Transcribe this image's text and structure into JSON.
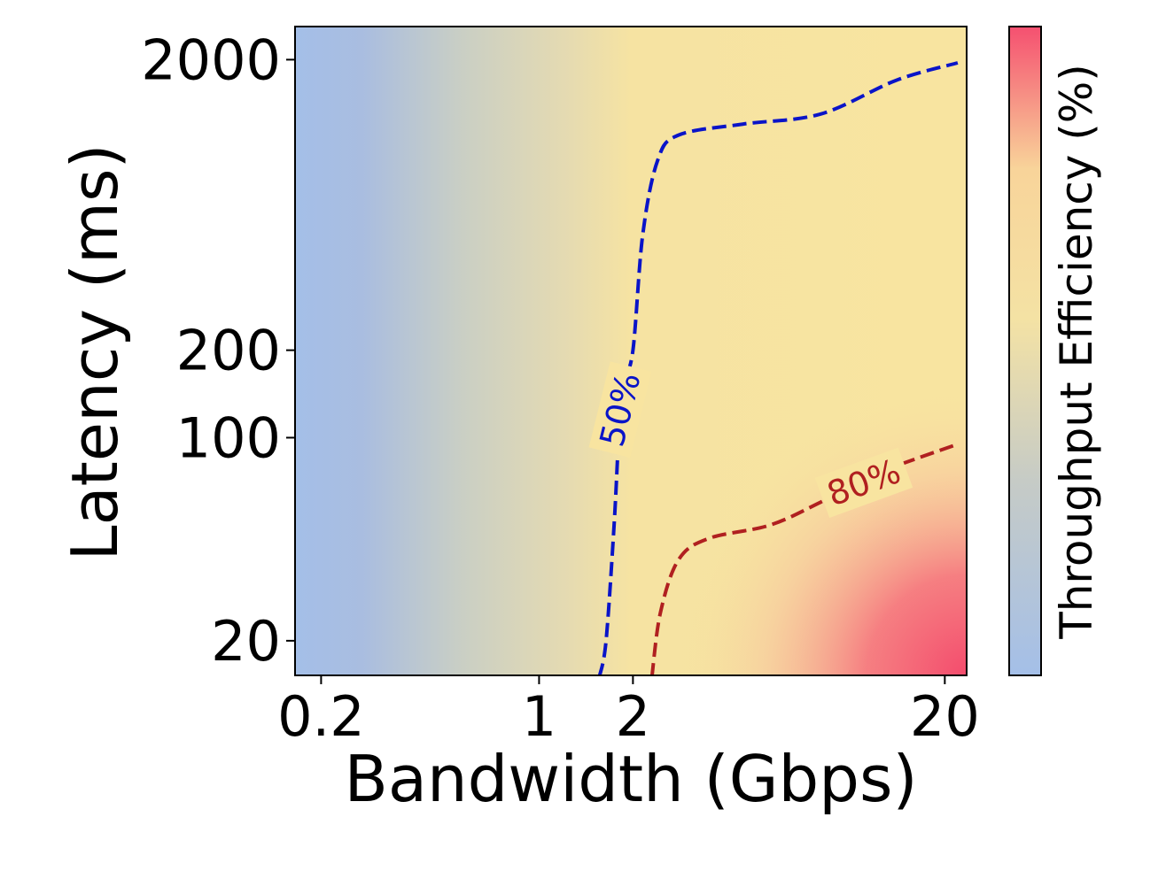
{
  "chart_data": {
    "type": "heatmap",
    "title": "",
    "xlabel": "Bandwidth (Gbps)",
    "ylabel": "Latency (ms)",
    "colorbar_label": "Throughput Efficiency (%)",
    "x_ticks": [
      {
        "value": 0.2,
        "label": "0.2"
      },
      {
        "value": 1,
        "label": "1"
      },
      {
        "value": 2,
        "label": "2"
      },
      {
        "value": 20,
        "label": "20"
      }
    ],
    "y_ticks": [
      {
        "value": 20,
        "label": "20"
      },
      {
        "value": 100,
        "label": "100"
      },
      {
        "value": 200,
        "label": "200"
      },
      {
        "value": 2000,
        "label": "2000"
      }
    ],
    "colormap": {
      "low": "#a4bfe8",
      "mid": "#f8e4a0",
      "high": "#f55070"
    },
    "contours": [
      {
        "label": "50%",
        "color": "#0a14c8",
        "points": [
          [
            1.56,
            15
          ],
          [
            1.64,
            20
          ],
          [
            1.74,
            50
          ],
          [
            1.8,
            100
          ],
          [
            1.86,
            150
          ],
          [
            2.0,
            200
          ],
          [
            2.15,
            500
          ],
          [
            2.4,
            900
          ],
          [
            2.8,
            1100
          ],
          [
            4.5,
            1200
          ],
          [
            8.0,
            1300
          ],
          [
            14.0,
            1700
          ],
          [
            22.0,
            1950
          ]
        ]
      },
      {
        "label": "80%",
        "color": "#b02020",
        "points": [
          [
            2.3,
            15
          ],
          [
            2.45,
            25
          ],
          [
            2.8,
            38
          ],
          [
            3.5,
            45
          ],
          [
            5.5,
            50
          ],
          [
            8.0,
            60
          ],
          [
            12.0,
            75
          ],
          [
            22.0,
            95
          ]
        ]
      }
    ]
  }
}
